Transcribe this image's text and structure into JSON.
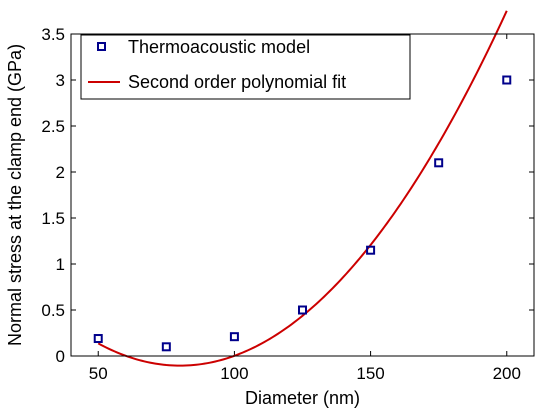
{
  "chart_data": {
    "type": "scatter",
    "xlabel": "Diameter (nm)",
    "ylabel": "Normal stress at the clamp end (GPa)",
    "xlim": [
      40,
      210
    ],
    "ylim": [
      0,
      3.5
    ],
    "xticks": [
      50,
      100,
      150,
      200
    ],
    "yticks": [
      0,
      0.5,
      1,
      1.5,
      2,
      2.5,
      3,
      3.5
    ],
    "xtick_labels": [
      "50",
      "100",
      "150",
      "200"
    ],
    "ytick_labels": [
      "0",
      "0.5",
      "1",
      "1.5",
      "2",
      "2.5",
      "3",
      "3.5"
    ],
    "grid": false,
    "legend_position": "top-left",
    "series": [
      {
        "name": "Thermoacoustic model",
        "kind": "markers",
        "marker": "square",
        "color": "#00008b",
        "x": [
          50,
          75,
          100,
          125,
          150,
          175,
          200
        ],
        "y": [
          0.19,
          0.1,
          0.21,
          0.5,
          1.15,
          2.1,
          3.0
        ]
      },
      {
        "name": "Second order polynomial fit",
        "kind": "line",
        "color": "#cc0000",
        "coefficients": [
          0.000268,
          -0.0429,
          1.6121
        ],
        "x_range": [
          50,
          200
        ]
      }
    ]
  }
}
